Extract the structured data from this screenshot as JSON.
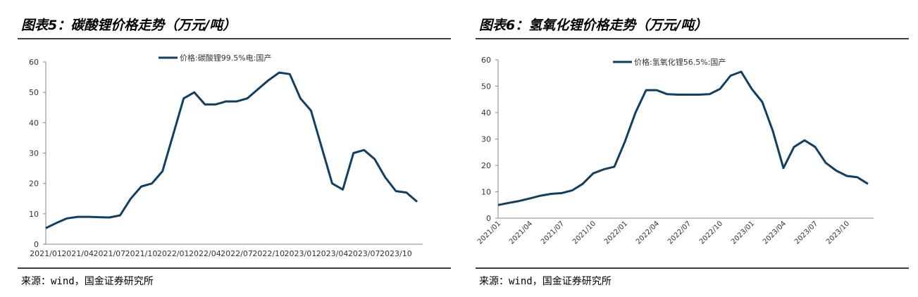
{
  "chart_data": [
    {
      "type": "line",
      "title": "图表5：碳酸锂价格走势（万元/吨）",
      "source": "来源：wind，国金证券研究所",
      "categories": [
        "2021/01",
        null,
        null,
        "2021/04",
        null,
        null,
        "2021/07",
        null,
        null,
        "2021/10",
        null,
        null,
        "2022/01",
        null,
        null,
        "2022/04",
        null,
        null,
        "2022/07",
        null,
        null,
        "2022/10",
        null,
        null,
        "2023/01",
        null,
        null,
        "2023/04",
        null,
        null,
        "2023/07",
        null,
        null,
        "2023/10",
        null,
        null
      ],
      "series": [
        {
          "name": "价格:碳酸锂99.5%电:国产",
          "color": "#0f3f64",
          "values": [
            5.3,
            7,
            8.5,
            9,
            9,
            8.9,
            8.8,
            9.5,
            15,
            19,
            20,
            24,
            36,
            48,
            50,
            46,
            46,
            47,
            47,
            48,
            51,
            54,
            56.5,
            56,
            48,
            44,
            32,
            20,
            18,
            30,
            31,
            28,
            22,
            17.5,
            17,
            14
          ]
        }
      ],
      "ylim": [
        0,
        60
      ],
      "yticks": [
        0,
        10,
        20,
        30,
        40,
        50,
        60
      ]
    },
    {
      "type": "line",
      "title": "图表6：氢氧化锂价格走势（万元/吨）",
      "source": "来源：wind，国金证券研究所",
      "categories": [
        "2021/01",
        null,
        null,
        "2021/04",
        null,
        null,
        "2021/07",
        null,
        null,
        "2021/10",
        null,
        null,
        "2022/01",
        null,
        null,
        "2022/04",
        null,
        null,
        "2022/07",
        null,
        null,
        "2022/10",
        null,
        null,
        "2023/01",
        null,
        null,
        "2023/04",
        null,
        null,
        "2023/07",
        null,
        null,
        "2023/10",
        null,
        null
      ],
      "series": [
        {
          "name": "价格:氢氧化锂56.5%:国产",
          "color": "#0f3f64",
          "values": [
            5,
            5.8,
            6.5,
            7.5,
            8.5,
            9.2,
            9.5,
            10.5,
            13,
            17,
            18.5,
            19.5,
            29,
            40,
            48.5,
            48.5,
            47,
            46.8,
            46.8,
            46.8,
            47,
            49,
            54,
            55.5,
            49,
            44,
            33,
            19,
            27,
            29.5,
            27,
            21,
            18,
            16,
            15.5,
            13
          ]
        }
      ],
      "ylim": [
        0,
        60
      ],
      "yticks": [
        0,
        10,
        20,
        30,
        40,
        50,
        60
      ]
    }
  ]
}
